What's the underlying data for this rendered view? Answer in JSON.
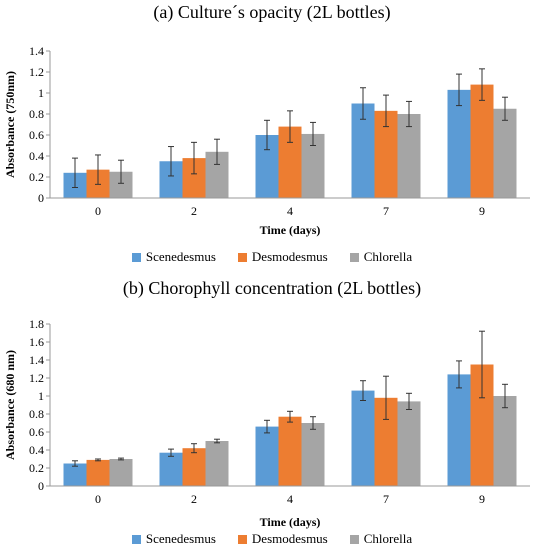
{
  "chart_data": [
    {
      "type": "bar",
      "title": "(a) Culture´s opacity (2L bottles)",
      "xlabel": "Time (days)",
      "ylabel": "Absorbance (750nm)",
      "categories": [
        "0",
        "2",
        "4",
        "7",
        "9"
      ],
      "ylim": [
        0,
        1.4
      ],
      "yticks": [
        "0",
        "0.2",
        "0.4",
        "0.6",
        "0.8",
        "1",
        "1.2",
        "1.4"
      ],
      "legend_position": "bottom",
      "series": [
        {
          "name": "Scenedesmus",
          "color": "#5B9BD5",
          "values": [
            0.24,
            0.35,
            0.6,
            0.9,
            1.03
          ],
          "errors": [
            0.14,
            0.14,
            0.14,
            0.15,
            0.15
          ]
        },
        {
          "name": "Desmodesmus",
          "color": "#ED7D31",
          "values": [
            0.27,
            0.38,
            0.68,
            0.83,
            1.08
          ],
          "errors": [
            0.14,
            0.15,
            0.15,
            0.15,
            0.15
          ]
        },
        {
          "name": "Chlorella",
          "color": "#A5A5A5",
          "values": [
            0.25,
            0.44,
            0.61,
            0.8,
            0.85
          ],
          "errors": [
            0.11,
            0.12,
            0.11,
            0.12,
            0.11
          ]
        }
      ]
    },
    {
      "type": "bar",
      "title": "(b) Chorophyll concentration (2L bottles)",
      "xlabel": "Time (days)",
      "ylabel": "Absorbance (680 nm)",
      "categories": [
        "0",
        "2",
        "4",
        "7",
        "9"
      ],
      "ylim": [
        0,
        1.8
      ],
      "yticks": [
        "0",
        "0.2",
        "0.4",
        "0.6",
        "0.8",
        "1",
        "1.2",
        "1.4",
        "1.6",
        "1.8"
      ],
      "legend_position": "bottom",
      "series": [
        {
          "name": "Scenedesmus",
          "color": "#5B9BD5",
          "values": [
            0.25,
            0.37,
            0.66,
            1.06,
            1.24
          ],
          "errors": [
            0.03,
            0.04,
            0.07,
            0.11,
            0.15
          ]
        },
        {
          "name": "Desmodesmus",
          "color": "#ED7D31",
          "values": [
            0.29,
            0.42,
            0.77,
            0.98,
            1.35
          ],
          "errors": [
            0.01,
            0.05,
            0.06,
            0.24,
            0.37
          ]
        },
        {
          "name": "Chlorella",
          "color": "#A5A5A5",
          "values": [
            0.3,
            0.5,
            0.7,
            0.94,
            1.0
          ],
          "errors": [
            0.01,
            0.02,
            0.07,
            0.09,
            0.13
          ]
        }
      ]
    }
  ]
}
